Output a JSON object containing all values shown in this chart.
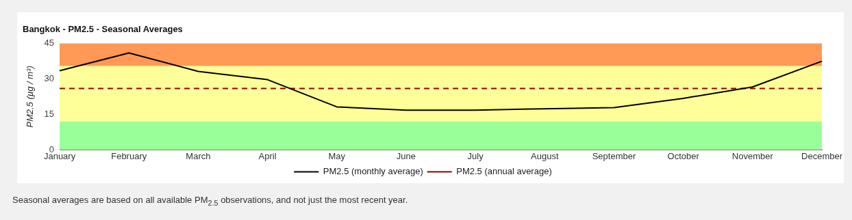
{
  "chart_data": {
    "type": "line",
    "title": "Bangkok - PM2.5 - Seasonal Averages",
    "ylabel": "PM2.5 (µg / m³)",
    "categories": [
      "January",
      "February",
      "March",
      "April",
      "May",
      "June",
      "July",
      "August",
      "September",
      "October",
      "November",
      "December"
    ],
    "series": [
      {
        "name": "PM2.5 (monthly average)",
        "color": "#000000",
        "values": [
          33.5,
          41,
          33.2,
          29.7,
          18.2,
          16.8,
          16.8,
          17.4,
          17.9,
          21.8,
          26.6,
          37.5
        ]
      }
    ],
    "ylim": [
      0,
      45
    ],
    "yticks": [
      0,
      15,
      30,
      45
    ],
    "ref_lines": [
      {
        "axis": "y",
        "value": 26,
        "label": "PM2.5 (annual average)",
        "color": "#8b0000",
        "line_style": "dashed"
      }
    ],
    "bands": [
      {
        "axis": "y",
        "from": 0,
        "to": 12,
        "color": "#99ff99"
      },
      {
        "axis": "y",
        "from": 12,
        "to": 35.5,
        "color": "#ffff99"
      },
      {
        "axis": "y",
        "from": 35.5,
        "to": 45,
        "color": "#ff9955"
      }
    ],
    "legend": "bottom",
    "grid": false,
    "marker": "none",
    "line_style": "solid",
    "annotations": [
      "Seasonal averages are based on all available PM$_{2.5}$ observations, and not just the most recent year."
    ]
  }
}
